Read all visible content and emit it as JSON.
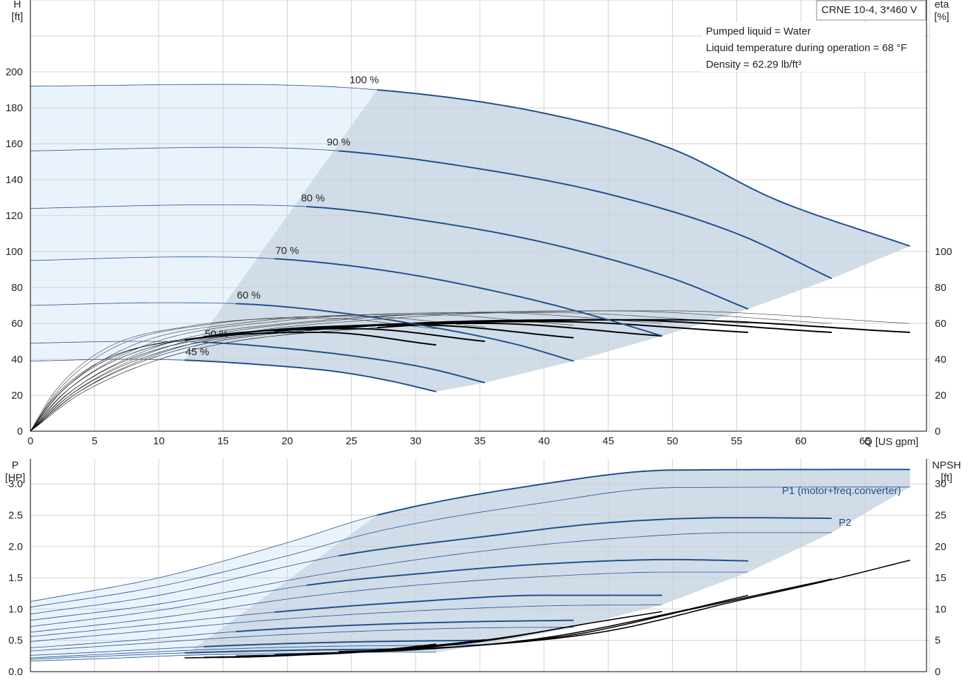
{
  "chart_data": [
    {
      "type": "line",
      "title": "CRNE 10-4, 3*460 V",
      "info_lines": [
        "Pumped liquid = Water",
        "Liquid temperature during operation = 68 °F",
        "Density = 62.29 lb/ft³"
      ],
      "y_label": [
        "H",
        "[ft]"
      ],
      "y2_label": [
        "eta",
        "[%]"
      ],
      "x_label": "Q [US gpm]",
      "xlim": [
        0,
        70
      ],
      "ylim": [
        0,
        240
      ],
      "y2lim": [
        0,
        240
      ],
      "x_ticks": [
        "0",
        "5",
        "10",
        "15",
        "20",
        "25",
        "30",
        "35",
        "40",
        "45",
        "50",
        "55",
        "60",
        "65"
      ],
      "y_ticks": [
        "0",
        "20",
        "40",
        "60",
        "80",
        "100",
        "120",
        "140",
        "160",
        "180",
        "200"
      ],
      "y2_ticks": [
        "0",
        "20",
        "40",
        "60",
        "80",
        "100"
      ],
      "colors": {
        "curve": "#1f4e8c",
        "area_main": "#d0dce8",
        "area_light": "#eaf3fc",
        "eta": "#000000",
        "grid": "#d0d0d0"
      },
      "speed_labels": [
        "100 %",
        "90 %",
        "80 %",
        "70 %",
        "60 %",
        "50 %",
        "45 %"
      ],
      "head_series": [
        {
          "name": "100 %",
          "q_max": 68.5,
          "q_boundary": 27,
          "q_label": 26,
          "points": [
            [
              0,
              192
            ],
            [
              15,
              193
            ],
            [
              27,
              190
            ],
            [
              40,
              177
            ],
            [
              50,
              157
            ],
            [
              58,
              129
            ],
            [
              68.5,
              103
            ]
          ]
        },
        {
          "name": "90 %",
          "q_max": 62.4,
          "q_boundary": 24,
          "q_label": 24,
          "points": [
            [
              0,
              156
            ],
            [
              15,
              158
            ],
            [
              24,
              156
            ],
            [
              35,
              146
            ],
            [
              45,
              132
            ],
            [
              55,
              110
            ],
            [
              62.4,
              85
            ]
          ]
        },
        {
          "name": "80 %",
          "q_max": 55.9,
          "q_boundary": 21.5,
          "q_label": 22,
          "points": [
            [
              0,
              124
            ],
            [
              14,
              126
            ],
            [
              21.5,
              125
            ],
            [
              30,
              118
            ],
            [
              40,
              105
            ],
            [
              50,
              85
            ],
            [
              55.9,
              68
            ]
          ]
        },
        {
          "name": "70 %",
          "q_max": 49.2,
          "q_boundary": 19,
          "q_label": 20,
          "points": [
            [
              0,
              95
            ],
            [
              12,
              97
            ],
            [
              19,
              96
            ],
            [
              28,
              89
            ],
            [
              38,
              75
            ],
            [
              45,
              62
            ],
            [
              49.2,
              53
            ]
          ]
        },
        {
          "name": "60 %",
          "q_max": 42.3,
          "q_boundary": 16,
          "q_label": 17,
          "points": [
            [
              0,
              70
            ],
            [
              10,
              71.5
            ],
            [
              16,
              71
            ],
            [
              24,
              66
            ],
            [
              32,
              57
            ],
            [
              38,
              48
            ],
            [
              42.3,
              39
            ]
          ]
        },
        {
          "name": "50 %",
          "q_max": 35.4,
          "q_boundary": 13.5,
          "q_label": 14.5,
          "points": [
            [
              0,
              49
            ],
            [
              8,
              50
            ],
            [
              13.5,
              49.5
            ],
            [
              20,
              46
            ],
            [
              26,
              41
            ],
            [
              31,
              35
            ],
            [
              35.4,
              27
            ]
          ]
        },
        {
          "name": "45 %",
          "q_max": 31.6,
          "q_boundary": 12,
          "q_label": 13,
          "points": [
            [
              0,
              39
            ],
            [
              7,
              40
            ],
            [
              12,
              39.5
            ],
            [
              18,
              37
            ],
            [
              24,
              33
            ],
            [
              28,
              28
            ],
            [
              31.6,
              22
            ]
          ]
        }
      ],
      "eta_series": [
        {
          "name": "100 %",
          "q_max": 68.5,
          "eta_at_max": 55,
          "peak": 62
        },
        {
          "name": "90 %",
          "q_max": 62.4,
          "eta_at_max": 55,
          "peak": 62
        },
        {
          "name": "80 %",
          "q_max": 55.9,
          "eta_at_max": 55,
          "peak": 61
        },
        {
          "name": "70 %",
          "q_max": 49.2,
          "eta_at_max": 53,
          "peak": 60
        },
        {
          "name": "60 %",
          "q_max": 42.3,
          "eta_at_max": 52,
          "peak": 59
        },
        {
          "name": "50 %",
          "q_max": 35.4,
          "eta_at_max": 50,
          "peak": 57
        },
        {
          "name": "45 %",
          "q_max": 31.6,
          "eta_at_max": 48,
          "peak": 55
        }
      ],
      "eta_ref_series": [
        {
          "q_max": 68.5,
          "eta_at_max": 60,
          "peak": 67
        },
        {
          "q_max": 62.4,
          "eta_at_max": 60,
          "peak": 67
        },
        {
          "q_max": 55.9,
          "eta_at_max": 60,
          "peak": 66
        },
        {
          "q_max": 49.2,
          "eta_at_max": 60,
          "peak": 66
        },
        {
          "q_max": 42.3,
          "eta_at_max": 59,
          "peak": 65
        },
        {
          "q_max": 35.4,
          "eta_at_max": 58,
          "peak": 64
        },
        {
          "q_max": 31.6,
          "eta_at_max": 57,
          "peak": 63
        }
      ]
    },
    {
      "type": "line",
      "y_label": [
        "P",
        "[HP]"
      ],
      "y2_label": [
        "NPSH",
        "[ft]"
      ],
      "xlim": [
        0,
        70
      ],
      "ylim": [
        0,
        3.4
      ],
      "y2lim": [
        0,
        34
      ],
      "y_ticks": [
        "0.0",
        "0.5",
        "1.0",
        "1.5",
        "2.0",
        "2.5",
        "3.0"
      ],
      "y2_ticks": [
        "0",
        "5",
        "10",
        "15",
        "20",
        "25",
        "30"
      ],
      "series_labels": {
        "p1": "P1 (motor+freq.converter)",
        "p2": "P2"
      },
      "p1_series": [
        {
          "name": "100 %",
          "q_max": 68.5,
          "q_boundary": 27,
          "points": [
            [
              0,
              1.12
            ],
            [
              10,
              1.5
            ],
            [
              20,
              2.06
            ],
            [
              27,
              2.5
            ],
            [
              40,
              3.0
            ],
            [
              50,
              3.22
            ],
            [
              68.5,
              3.23
            ]
          ]
        },
        {
          "name": "90 %",
          "q_max": 62.4,
          "q_boundary": 24,
          "points": [
            [
              0,
              0.92
            ],
            [
              10,
              1.22
            ],
            [
              24,
              1.85
            ],
            [
              35,
              2.15
            ],
            [
              45,
              2.38
            ],
            [
              55,
              2.46
            ],
            [
              62.4,
              2.45
            ]
          ]
        },
        {
          "name": "80 %",
          "q_max": 55.9,
          "q_boundary": 21.5,
          "points": [
            [
              0,
              0.72
            ],
            [
              10,
              0.98
            ],
            [
              21.5,
              1.38
            ],
            [
              30,
              1.56
            ],
            [
              40,
              1.72
            ],
            [
              50,
              1.79
            ],
            [
              55.9,
              1.77
            ]
          ]
        },
        {
          "name": "70 %",
          "q_max": 49.2,
          "q_boundary": 19,
          "points": [
            [
              0,
              0.56
            ],
            [
              8,
              0.72
            ],
            [
              19,
              0.95
            ],
            [
              30,
              1.12
            ],
            [
              40,
              1.22
            ],
            [
              49.2,
              1.22
            ]
          ]
        },
        {
          "name": "60 %",
          "q_max": 42.3,
          "q_boundary": 16,
          "points": [
            [
              0,
              0.38
            ],
            [
              8,
              0.5
            ],
            [
              16,
              0.64
            ],
            [
              25,
              0.74
            ],
            [
              35,
              0.8
            ],
            [
              42.3,
              0.82
            ]
          ]
        },
        {
          "name": "50 %",
          "q_max": 35.4,
          "q_boundary": 13.5,
          "points": [
            [
              0,
              0.26
            ],
            [
              6,
              0.32
            ],
            [
              13.5,
              0.4
            ],
            [
              22,
              0.46
            ],
            [
              30,
              0.49
            ],
            [
              35.4,
              0.5
            ]
          ]
        },
        {
          "name": "45 %",
          "q_max": 31.6,
          "q_boundary": 12,
          "points": [
            [
              0,
              0.2
            ],
            [
              6,
              0.25
            ],
            [
              12,
              0.3
            ],
            [
              20,
              0.34
            ],
            [
              28,
              0.36
            ],
            [
              31.6,
              0.37
            ]
          ]
        }
      ],
      "p2_series": [
        {
          "name": "100 %",
          "q_max": 68.5,
          "points": [
            [
              0,
              1.03
            ],
            [
              10,
              1.36
            ],
            [
              20,
              1.85
            ],
            [
              27,
              2.24
            ],
            [
              40,
              2.7
            ],
            [
              50,
              2.94
            ],
            [
              68.5,
              2.95
            ]
          ]
        },
        {
          "name": "90 %",
          "q_max": 62.4,
          "points": [
            [
              0,
              0.82
            ],
            [
              10,
              1.08
            ],
            [
              24,
              1.6
            ],
            [
              35,
              1.92
            ],
            [
              45,
              2.12
            ],
            [
              55,
              2.22
            ],
            [
              62.4,
              2.22
            ]
          ]
        },
        {
          "name": "80 %",
          "q_max": 55.9,
          "points": [
            [
              0,
              0.63
            ],
            [
              10,
              0.86
            ],
            [
              21.5,
              1.2
            ],
            [
              30,
              1.38
            ],
            [
              40,
              1.52
            ],
            [
              50,
              1.59
            ],
            [
              55.9,
              1.59
            ]
          ]
        },
        {
          "name": "70 %",
          "q_max": 49.2,
          "points": [
            [
              0,
              0.48
            ],
            [
              8,
              0.63
            ],
            [
              19,
              0.83
            ],
            [
              30,
              0.97
            ],
            [
              40,
              1.05
            ],
            [
              49.2,
              1.07
            ]
          ]
        },
        {
          "name": "60 %",
          "q_max": 42.3,
          "points": [
            [
              0,
              0.33
            ],
            [
              8,
              0.44
            ],
            [
              16,
              0.55
            ],
            [
              25,
              0.64
            ],
            [
              35,
              0.7
            ],
            [
              42.3,
              0.71
            ]
          ]
        },
        {
          "name": "50 %",
          "q_max": 35.4,
          "points": [
            [
              0,
              0.22
            ],
            [
              6,
              0.28
            ],
            [
              13.5,
              0.35
            ],
            [
              22,
              0.4
            ],
            [
              30,
              0.42
            ],
            [
              35.4,
              0.43
            ]
          ]
        },
        {
          "name": "45 %",
          "q_max": 31.6,
          "points": [
            [
              0,
              0.17
            ],
            [
              6,
              0.21
            ],
            [
              12,
              0.26
            ],
            [
              20,
              0.29
            ],
            [
              28,
              0.31
            ],
            [
              31.6,
              0.31
            ]
          ]
        }
      ],
      "npsh_series": [
        {
          "name": "100 %",
          "q_max": 68.5,
          "points": [
            [
              27,
              3.5
            ],
            [
              35,
              4.2
            ],
            [
              45,
              6.5
            ],
            [
              55,
              11.3
            ],
            [
              62,
              14.5
            ],
            [
              68.5,
              17.8
            ]
          ]
        },
        {
          "name": "90 %",
          "q_max": 62.4,
          "points": [
            [
              24,
              3.2
            ],
            [
              32,
              3.8
            ],
            [
              42,
              5.8
            ],
            [
              52,
              10.2
            ],
            [
              62.4,
              14.8
            ]
          ]
        },
        {
          "name": "80 %",
          "q_max": 55.9,
          "points": [
            [
              21.5,
              2.9
            ],
            [
              30,
              3.5
            ],
            [
              40,
              5.4
            ],
            [
              50,
              9.4
            ],
            [
              55.9,
              12.2
            ]
          ]
        },
        {
          "name": "70 %",
          "q_max": 49.2,
          "points": [
            [
              19,
              2.7
            ],
            [
              26,
              3.2
            ],
            [
              35,
              4.8
            ],
            [
              44,
              7.9
            ],
            [
              49.2,
              9.6
            ]
          ]
        },
        {
          "name": "60 %",
          "q_max": 42.3,
          "points": [
            [
              16,
              2.5
            ],
            [
              24,
              2.9
            ],
            [
              32,
              4.2
            ],
            [
              38,
              5.8
            ],
            [
              42.3,
              7.3
            ]
          ]
        },
        {
          "name": "50 %",
          "q_max": 35.4,
          "points": [
            [
              13.5,
              2.3
            ],
            [
              20,
              2.6
            ],
            [
              27,
              3.4
            ],
            [
              32,
              4.3
            ],
            [
              35.4,
              5.1
            ]
          ]
        },
        {
          "name": "45 %",
          "q_max": 31.6,
          "points": [
            [
              12,
              2.2
            ],
            [
              18,
              2.4
            ],
            [
              24,
              3.0
            ],
            [
              28,
              3.6
            ],
            [
              31.6,
              4.4
            ]
          ]
        }
      ]
    }
  ]
}
